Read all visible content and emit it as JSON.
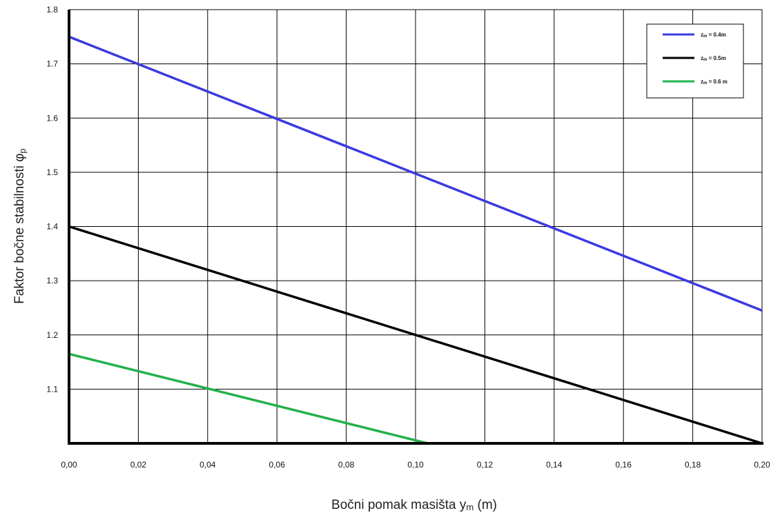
{
  "chart_data": {
    "type": "line",
    "title": "",
    "xlabel": "Bočni pomak masišta y",
    "xlabel_sub": "m",
    "xlabel_unit": " (m)",
    "ylabel": "Faktor bočne stabilnosti φ",
    "ylabel_sub": "p",
    "xlim": [
      0,
      0.2
    ],
    "ylim": [
      1.0,
      1.8
    ],
    "grid": true,
    "legend_position": "top-right",
    "x_ticks": [
      0,
      0.02,
      0.04,
      0.06,
      0.08,
      0.1,
      0.12,
      0.14,
      0.16,
      0.18,
      0.2
    ],
    "x_tick_labels": [
      "0,00",
      "0,02",
      "0,04",
      "0,06",
      "0,08",
      "0,10",
      "0,12",
      "0,14",
      "0,16",
      "0,18",
      "0,20"
    ],
    "y_ticks": [
      1.1,
      1.2,
      1.3,
      1.4,
      1.5,
      1.6,
      1.7,
      1.8
    ],
    "y_tick_labels": [
      "1.1",
      "1.2",
      "1.3",
      "1.4",
      "1.5",
      "1.6",
      "1.7",
      "1.8"
    ],
    "series": [
      {
        "name": "zm = 0.4m",
        "legend_var": "z",
        "legend_sub": "m",
        "legend_rest": " = 0.4m",
        "color": "#3a3ae0",
        "x": [
          0,
          0.2
        ],
        "y": [
          1.75,
          1.245
        ]
      },
      {
        "name": "zm = 0.5m",
        "legend_var": "z",
        "legend_sub": "m",
        "legend_rest": " = 0.5m",
        "color": "#000000",
        "x": [
          0,
          0.2
        ],
        "y": [
          1.4,
          1.0
        ]
      },
      {
        "name": "zm = 0.6 m",
        "legend_var": "z",
        "legend_sub": "m",
        "legend_rest": " = 0.6 m",
        "color": "#22b14c",
        "x": [
          0,
          0.1035
        ],
        "y": [
          1.165,
          1.0
        ]
      }
    ]
  }
}
